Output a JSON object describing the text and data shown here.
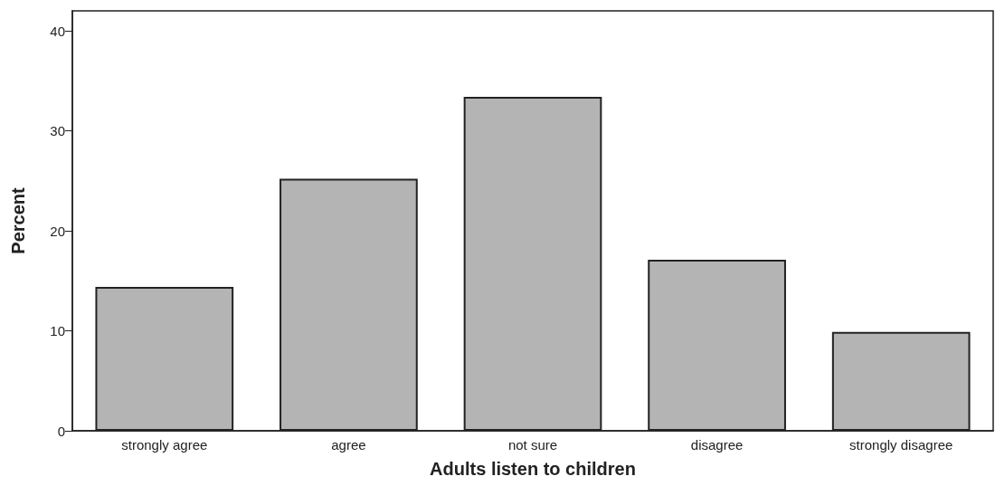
{
  "chart_data": {
    "type": "bar",
    "xlabel": "Adults listen to children",
    "ylabel": "Percent",
    "categories": [
      "strongly agree",
      "agree",
      "not sure",
      "disagree",
      "strongly disagree"
    ],
    "values": [
      14.4,
      25.2,
      33.4,
      17.1,
      9.9
    ],
    "color": "#b4b4b4",
    "ylim": [
      0,
      42
    ],
    "yticks": [
      0,
      10,
      20,
      30,
      40
    ],
    "grid": false
  }
}
